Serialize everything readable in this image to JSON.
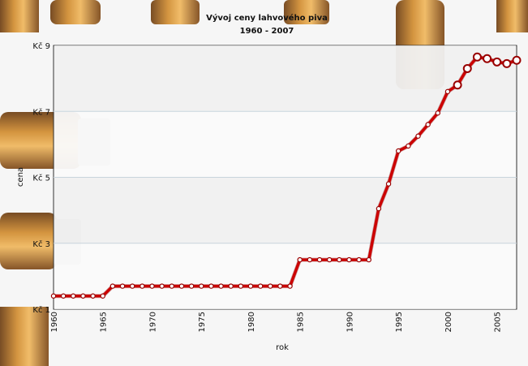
{
  "chart_data": {
    "type": "line",
    "title": "Vývoj ceny lahvového piva",
    "subtitle": "1960 - 2007",
    "xlabel": "rok",
    "ylabel": "cena",
    "x": [
      1960,
      1961,
      1962,
      1963,
      1964,
      1965,
      1966,
      1967,
      1968,
      1969,
      1970,
      1971,
      1972,
      1973,
      1974,
      1975,
      1976,
      1977,
      1978,
      1979,
      1980,
      1981,
      1982,
      1983,
      1984,
      1985,
      1986,
      1987,
      1988,
      1989,
      1990,
      1991,
      1992,
      1993,
      1994,
      1995,
      1996,
      1997,
      1998,
      1999,
      2000,
      2001,
      2002,
      2003,
      2004,
      2005,
      2006,
      2007
    ],
    "series": [
      {
        "values": [
          1.4,
          1.4,
          1.4,
          1.4,
          1.4,
          1.4,
          1.7,
          1.7,
          1.7,
          1.7,
          1.7,
          1.7,
          1.7,
          1.7,
          1.7,
          1.7,
          1.7,
          1.7,
          1.7,
          1.7,
          1.7,
          1.7,
          1.7,
          1.7,
          1.7,
          2.5,
          2.5,
          2.5,
          2.5,
          2.5,
          2.5,
          2.5,
          2.5,
          4.05,
          4.8,
          5.8,
          5.95,
          6.25,
          6.6,
          6.95,
          7.6,
          7.8,
          8.3,
          8.65,
          8.6,
          8.5,
          8.45,
          8.55
        ],
        "color": "#cc0000"
      }
    ],
    "xlim": [
      1960,
      2007
    ],
    "ylim": [
      1,
      9
    ],
    "xticks": [
      "1960",
      "1965",
      "1970",
      "1975",
      "1980",
      "1985",
      "1990",
      "1995",
      "2000",
      "2005"
    ],
    "yticks": [
      "Kč 1",
      "Kč 3",
      "Kč 5",
      "Kč 7",
      "Kč 9"
    ],
    "grid": true,
    "legend": "none"
  },
  "colors": {
    "line": "#cc0000",
    "marker_fill": "#ffffff",
    "marker_stroke": "#990000",
    "background": "#f6f6f6"
  }
}
